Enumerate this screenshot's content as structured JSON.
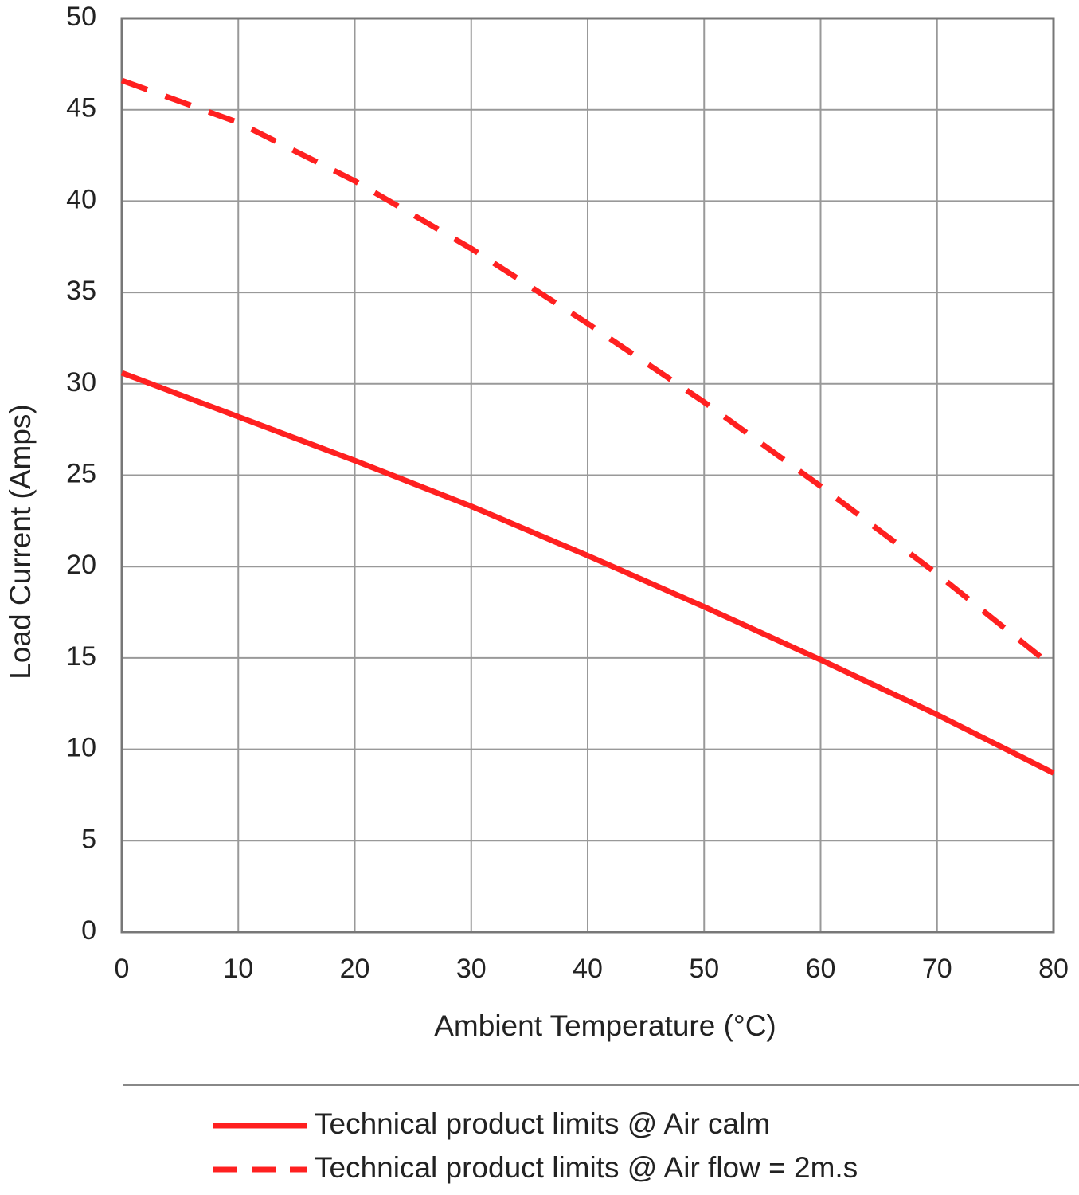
{
  "chart_data": {
    "type": "line",
    "xlabel": "Ambient Temperature (°C)",
    "ylabel": "Load Current (Amps)",
    "xlim": [
      0,
      80
    ],
    "xticks": [
      0,
      10,
      20,
      30,
      40,
      50,
      60,
      70,
      80
    ],
    "ylim": [
      0,
      50
    ],
    "yticks": [
      0,
      5,
      10,
      15,
      20,
      25,
      30,
      35,
      40,
      45,
      50
    ],
    "grid": true,
    "legend": "bottom",
    "series": [
      {
        "name": "Technical product limits @ Air calm",
        "color": "#ff2020",
        "dash": "solid",
        "x": [
          0,
          10,
          20,
          30,
          40,
          50,
          60,
          70,
          80
        ],
        "values": [
          30.6,
          28.2,
          25.8,
          23.3,
          20.6,
          17.8,
          14.9,
          11.9,
          8.7
        ]
      },
      {
        "name": "Technical product limits @ Air flow = 2m.s",
        "color": "#ff2020",
        "dash": "dashed",
        "x": [
          0,
          10,
          20,
          30,
          40,
          50,
          60,
          70,
          79
        ],
        "values": [
          46.6,
          44.3,
          41.1,
          37.4,
          33.3,
          29.0,
          24.4,
          19.6,
          15.0
        ]
      }
    ]
  }
}
